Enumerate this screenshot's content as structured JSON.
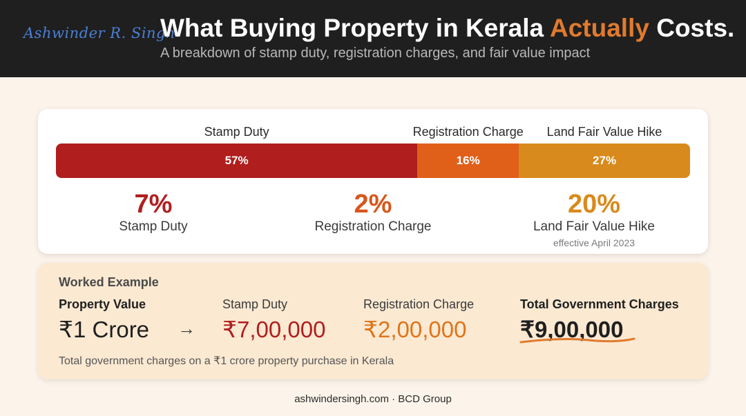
{
  "header": {
    "signature": "Ashwinder R. Singh",
    "title_before": "What Buying Property in Kerala ",
    "title_accent": "Actually",
    "title_after": " Costs.",
    "subtitle": "A breakdown of stamp duty, registration charges, and fair value impact"
  },
  "colors": {
    "header_bg": "#1f1f1f",
    "accent": "#e07a2e",
    "stamp_duty": "#b01e1e",
    "registration": "#e0601a",
    "land_fair_value": "#d98a1c"
  },
  "chart_data": {
    "type": "bar",
    "orientation": "horizontal-stacked",
    "categories": [
      "Stamp Duty",
      "Registration Charge",
      "Land Fair Value Hike"
    ],
    "values": [
      57,
      16,
      27
    ],
    "value_labels": [
      "57%",
      "16%",
      "27%"
    ],
    "series_colors": [
      "#b01e1e",
      "#e0601a",
      "#d98a1c"
    ]
  },
  "stats": [
    {
      "value": "7%",
      "label": "Stamp Duty",
      "note": "",
      "color": "#b01e1e"
    },
    {
      "value": "2%",
      "label": "Registration Charge",
      "note": "",
      "color": "#d8561a"
    },
    {
      "value": "20%",
      "label": "Land Fair Value Hike",
      "note": "effective April 2023",
      "color": "#d98a1c"
    }
  ],
  "worked_example": {
    "title": "Worked Example",
    "property_label": "Property Value",
    "property_value": "₹1 Crore",
    "arrow": "→",
    "stamp_label": "Stamp Duty",
    "stamp_value": "₹7,00,000",
    "registration_label": "Registration Charge",
    "registration_value": "₹2,00,000",
    "total_label": "Total Government Charges",
    "total_value": "₹9,00,000",
    "note": "Total government charges on a ₹1 crore property purchase in Kerala"
  },
  "footer": "ashwindersingh.com · BCD Group"
}
